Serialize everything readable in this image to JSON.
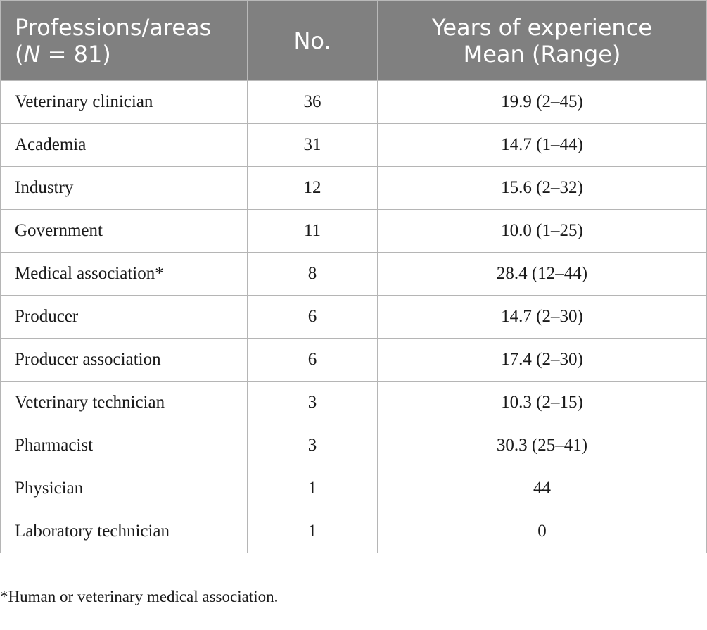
{
  "header": {
    "col1_line1": "Professions/areas",
    "col1_n_italic": "N",
    "col1_n_rest": " = 81)",
    "col1_open": "(",
    "col2": "No.",
    "col3_line1": "Years of experience",
    "col3_line2": "Mean (Range)"
  },
  "rows": [
    {
      "profession": "Veterinary clinician",
      "no": "36",
      "years": "19.9 (2–45)"
    },
    {
      "profession": "Academia",
      "no": "31",
      "years": "14.7 (1–44)"
    },
    {
      "profession": "Industry",
      "no": "12",
      "years": "15.6 (2–32)"
    },
    {
      "profession": "Government",
      "no": "11",
      "years": "10.0 (1–25)"
    },
    {
      "profession": "Medical association*",
      "no": "8",
      "years": "28.4 (12–44)"
    },
    {
      "profession": "Producer",
      "no": "6",
      "years": "14.7 (2–30)"
    },
    {
      "profession": "Producer association",
      "no": "6",
      "years": "17.4 (2–30)"
    },
    {
      "profession": "Veterinary technician",
      "no": "3",
      "years": "10.3 (2–15)"
    },
    {
      "profession": "Pharmacist",
      "no": "3",
      "years": "30.3 (25–41)"
    },
    {
      "profession": "Physician",
      "no": "1",
      "years": "44"
    },
    {
      "profession": "Laboratory technician",
      "no": "1",
      "years": "0"
    }
  ],
  "footnote": "*Human or veterinary medical association."
}
